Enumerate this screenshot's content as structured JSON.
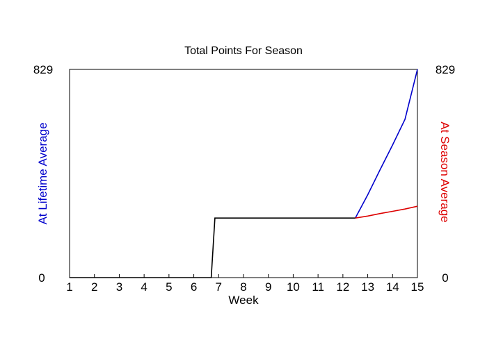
{
  "chart_data": {
    "type": "line",
    "title": "Total Points For Season",
    "xlabel": "Week",
    "ylabel_left": "At Lifetime Average",
    "ylabel_right": "At Season Average",
    "xlim": [
      1,
      15
    ],
    "ylim": [
      0,
      829
    ],
    "x_ticks": [
      1,
      2,
      3,
      4,
      5,
      6,
      7,
      8,
      9,
      10,
      11,
      12,
      13,
      14,
      15
    ],
    "y_ticks_left": [
      "0",
      "829"
    ],
    "y_ticks_right": [
      "0",
      "829"
    ],
    "grid": false,
    "series": [
      {
        "color": "#0000cc",
        "points": [
          [
            12.5,
            237
          ],
          [
            13,
            330
          ],
          [
            13.5,
            430
          ],
          [
            14,
            528
          ],
          [
            14.5,
            630
          ],
          [
            15,
            829
          ]
        ]
      },
      {
        "color": "#dd0000",
        "points": [
          [
            12.5,
            237
          ],
          [
            13,
            245
          ],
          [
            13.5,
            255
          ],
          [
            14,
            264
          ],
          [
            14.5,
            273
          ],
          [
            15,
            284
          ]
        ]
      },
      {
        "color": "#000000",
        "points": [
          [
            1,
            0
          ],
          [
            6.7,
            0
          ],
          [
            6.85,
            237
          ],
          [
            12.5,
            237
          ]
        ]
      }
    ]
  }
}
